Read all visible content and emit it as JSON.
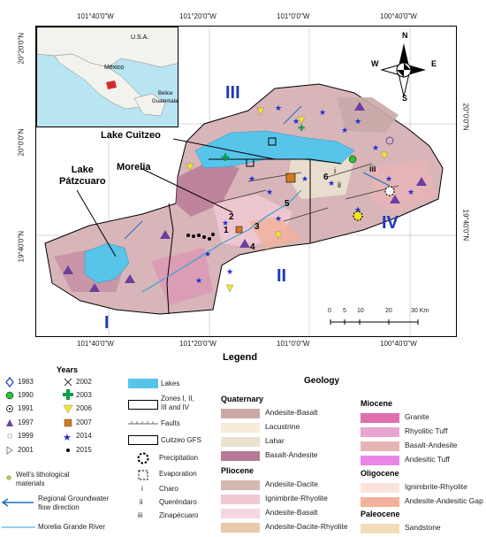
{
  "coordinates": {
    "top": [
      "101°40'0\"W",
      "101°20'0\"W",
      "101°0'0\"W",
      "100°40'0\"W"
    ],
    "bottom": [
      "101°40'0\"W",
      "101°20'0\"W",
      "101°0'0\"W",
      "100°40'0\"W"
    ],
    "left": [
      "20°20'0\"N",
      "20°0'0\"N",
      "19°40'0\"N"
    ],
    "right": [
      "20°0'0\"N",
      "19°40'0\"N"
    ]
  },
  "inset": {
    "usa": "U.S.A.",
    "mexico": "México",
    "belize": "Belice",
    "guatemala": "Guatemala"
  },
  "map_labels": {
    "lake_cuitzeo": "Lake Cuitzeo",
    "morelia": "Morelia",
    "lake_patzcuaro": "Lake\nPátzcuaro",
    "zone_I": "I",
    "zone_II": "II",
    "zone_III": "III",
    "zone_IV": "IV",
    "gfs_i": "i",
    "gfs_ii": "ii",
    "gfs_iii": "iii",
    "n1": "1",
    "n2": "2",
    "n3": "3",
    "n4": "4",
    "n5": "5",
    "n6": "6"
  },
  "compass": {
    "n": "N",
    "s": "S",
    "e": "E",
    "w": "W"
  },
  "scale_bar": {
    "ticks": [
      "0",
      "5",
      "10",
      "20",
      "30 Km"
    ]
  },
  "legend": {
    "title": "Legend",
    "years_title": "Years",
    "years_col1": [
      {
        "year": "1983",
        "icon": "diamond-outline"
      },
      {
        "year": "1990",
        "icon": "green-circle"
      },
      {
        "year": "1991",
        "icon": "dot-circle"
      },
      {
        "year": "1997",
        "icon": "purple-triangle"
      },
      {
        "year": "1999",
        "icon": "small-square"
      },
      {
        "year": "2001",
        "icon": "right-triangle"
      }
    ],
    "years_col2": [
      {
        "year": "2002",
        "icon": "cross"
      },
      {
        "year": "2003",
        "icon": "green-plus"
      },
      {
        "year": "2006",
        "icon": "yellow-triangle"
      },
      {
        "year": "2007",
        "icon": "orange-square"
      },
      {
        "year": "2014",
        "icon": "blue-star"
      },
      {
        "year": "2015",
        "icon": "black-dot"
      }
    ],
    "wells": "Well's lithological\nmaterials",
    "groundwater": "Regional Groundwater\nflow direction",
    "river": "Morelia Grande River",
    "lakes": "Lakes",
    "zones": "Zones I, II,\nIII and IV",
    "faults": "Faults",
    "gfs": "Cuitzeo GFS",
    "precipitation": "Precipitation",
    "evaporation": "Evaporation",
    "gfs_list": [
      {
        "num": "i",
        "name": "Charo"
      },
      {
        "num": "ii",
        "name": "Queréndaro"
      },
      {
        "num": "iii",
        "name": "Zinapécuaro"
      }
    ]
  },
  "geology": {
    "title": "Geology",
    "quaternary": {
      "title": "Quaternary",
      "items": [
        {
          "label": "Andesite-Basalt",
          "color": "#c9aaa8"
        },
        {
          "label": "Lacustrine",
          "color": "#f6ecd8"
        },
        {
          "label": "Lahar",
          "color": "#ebe2cf"
        },
        {
          "label": "Basalt-Andesite",
          "color": "#b87896"
        }
      ]
    },
    "pliocene": {
      "title": "Pliocene",
      "items": [
        {
          "label": "Andesite-Dacite",
          "color": "#d4b7b0"
        },
        {
          "label": "Ignimbrite-Rhyolite",
          "color": "#f1c8d3"
        },
        {
          "label": "Andesite-Basalt",
          "color": "#f6d8e0"
        },
        {
          "label": "Andesite-Dacite-Rhyolite",
          "color": "#e8c9aa"
        }
      ]
    },
    "miocene": {
      "title": "Miocene",
      "items": [
        {
          "label": "Granite",
          "color": "#e06fb0"
        },
        {
          "label": "Rhyolitic Tuff",
          "color": "#e9a4cf"
        },
        {
          "label": "Basalt-Andesite",
          "color": "#e7b4b6"
        },
        {
          "label": "Andesitic Tuff",
          "color": "#ea86e8"
        }
      ]
    },
    "oligocene": {
      "title": "Oligocene",
      "items": [
        {
          "label": "Ignimbrite-Rhyolite",
          "color": "#fbe3dc"
        },
        {
          "label": "Andesite-Andesitic Gap",
          "color": "#f3b29b"
        }
      ]
    },
    "paleocene": {
      "title": "Paleocene",
      "items": [
        {
          "label": "Sandstone",
          "color": "#f3ddb8"
        }
      ]
    }
  }
}
